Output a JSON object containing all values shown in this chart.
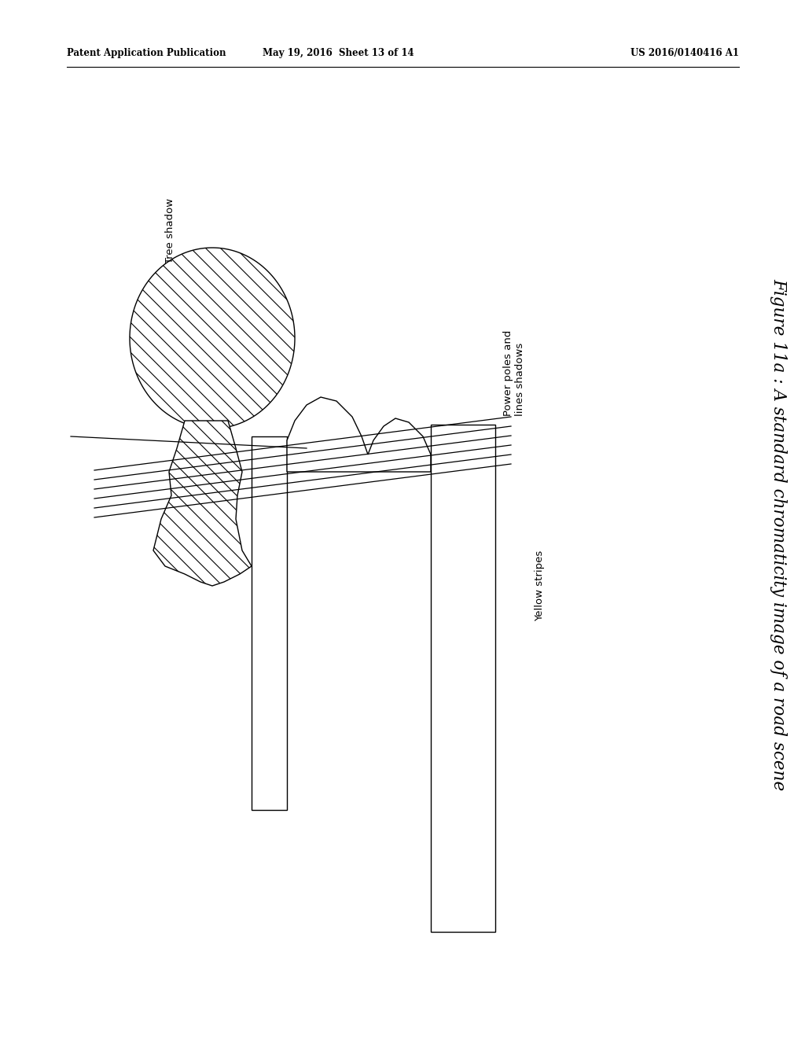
{
  "bg_color": "#ffffff",
  "title_text": "Figure 11a : A standard chromaticity image of a road scene",
  "header_left": "Patent Application Publication",
  "header_mid": "May 19, 2016  Sheet 13 of 14",
  "header_right": "US 2016/0140416 A1",
  "label_tree": "Tree shadow",
  "label_power": "Power poles and\nlines shadows",
  "label_yellow": "Yellow stripes",
  "fig_width": 10.24,
  "fig_height": 13.2
}
